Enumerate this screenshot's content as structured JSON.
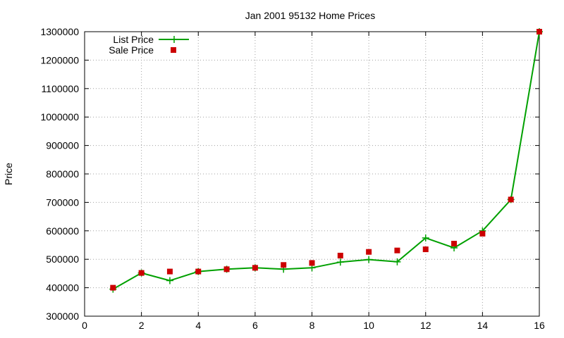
{
  "chart_data": {
    "type": "line",
    "title": "Jan 2001 95132 Home Prices",
    "xlabel": "",
    "ylabel": "Price",
    "xlim": [
      0,
      16
    ],
    "ylim": [
      300000,
      1300000
    ],
    "xticks": [
      0,
      2,
      4,
      6,
      8,
      10,
      12,
      14,
      16
    ],
    "yticks": [
      300000,
      400000,
      500000,
      600000,
      700000,
      800000,
      900000,
      1000000,
      1100000,
      1200000,
      1300000
    ],
    "grid": true,
    "legend_position": "top-left",
    "series": [
      {
        "name": "List Price",
        "style": "line+cross",
        "color": "#00a000",
        "x": [
          1,
          2,
          3,
          4,
          5,
          6,
          7,
          8,
          9,
          10,
          11,
          12,
          13,
          14,
          15,
          16
        ],
        "y": [
          395000,
          452000,
          425000,
          457000,
          465000,
          470000,
          465000,
          470000,
          490000,
          499000,
          491000,
          575000,
          540000,
          600000,
          710000,
          1300000
        ]
      },
      {
        "name": "Sale Price",
        "style": "square",
        "color": "#cc0000",
        "x": [
          1,
          2,
          3,
          4,
          5,
          6,
          7,
          8,
          9,
          10,
          11,
          12,
          13,
          14,
          15,
          16
        ],
        "y": [
          400000,
          452000,
          457000,
          457000,
          465000,
          470000,
          480000,
          487000,
          513000,
          526000,
          531000,
          535000,
          555000,
          590000,
          710000,
          1300000
        ]
      }
    ]
  }
}
